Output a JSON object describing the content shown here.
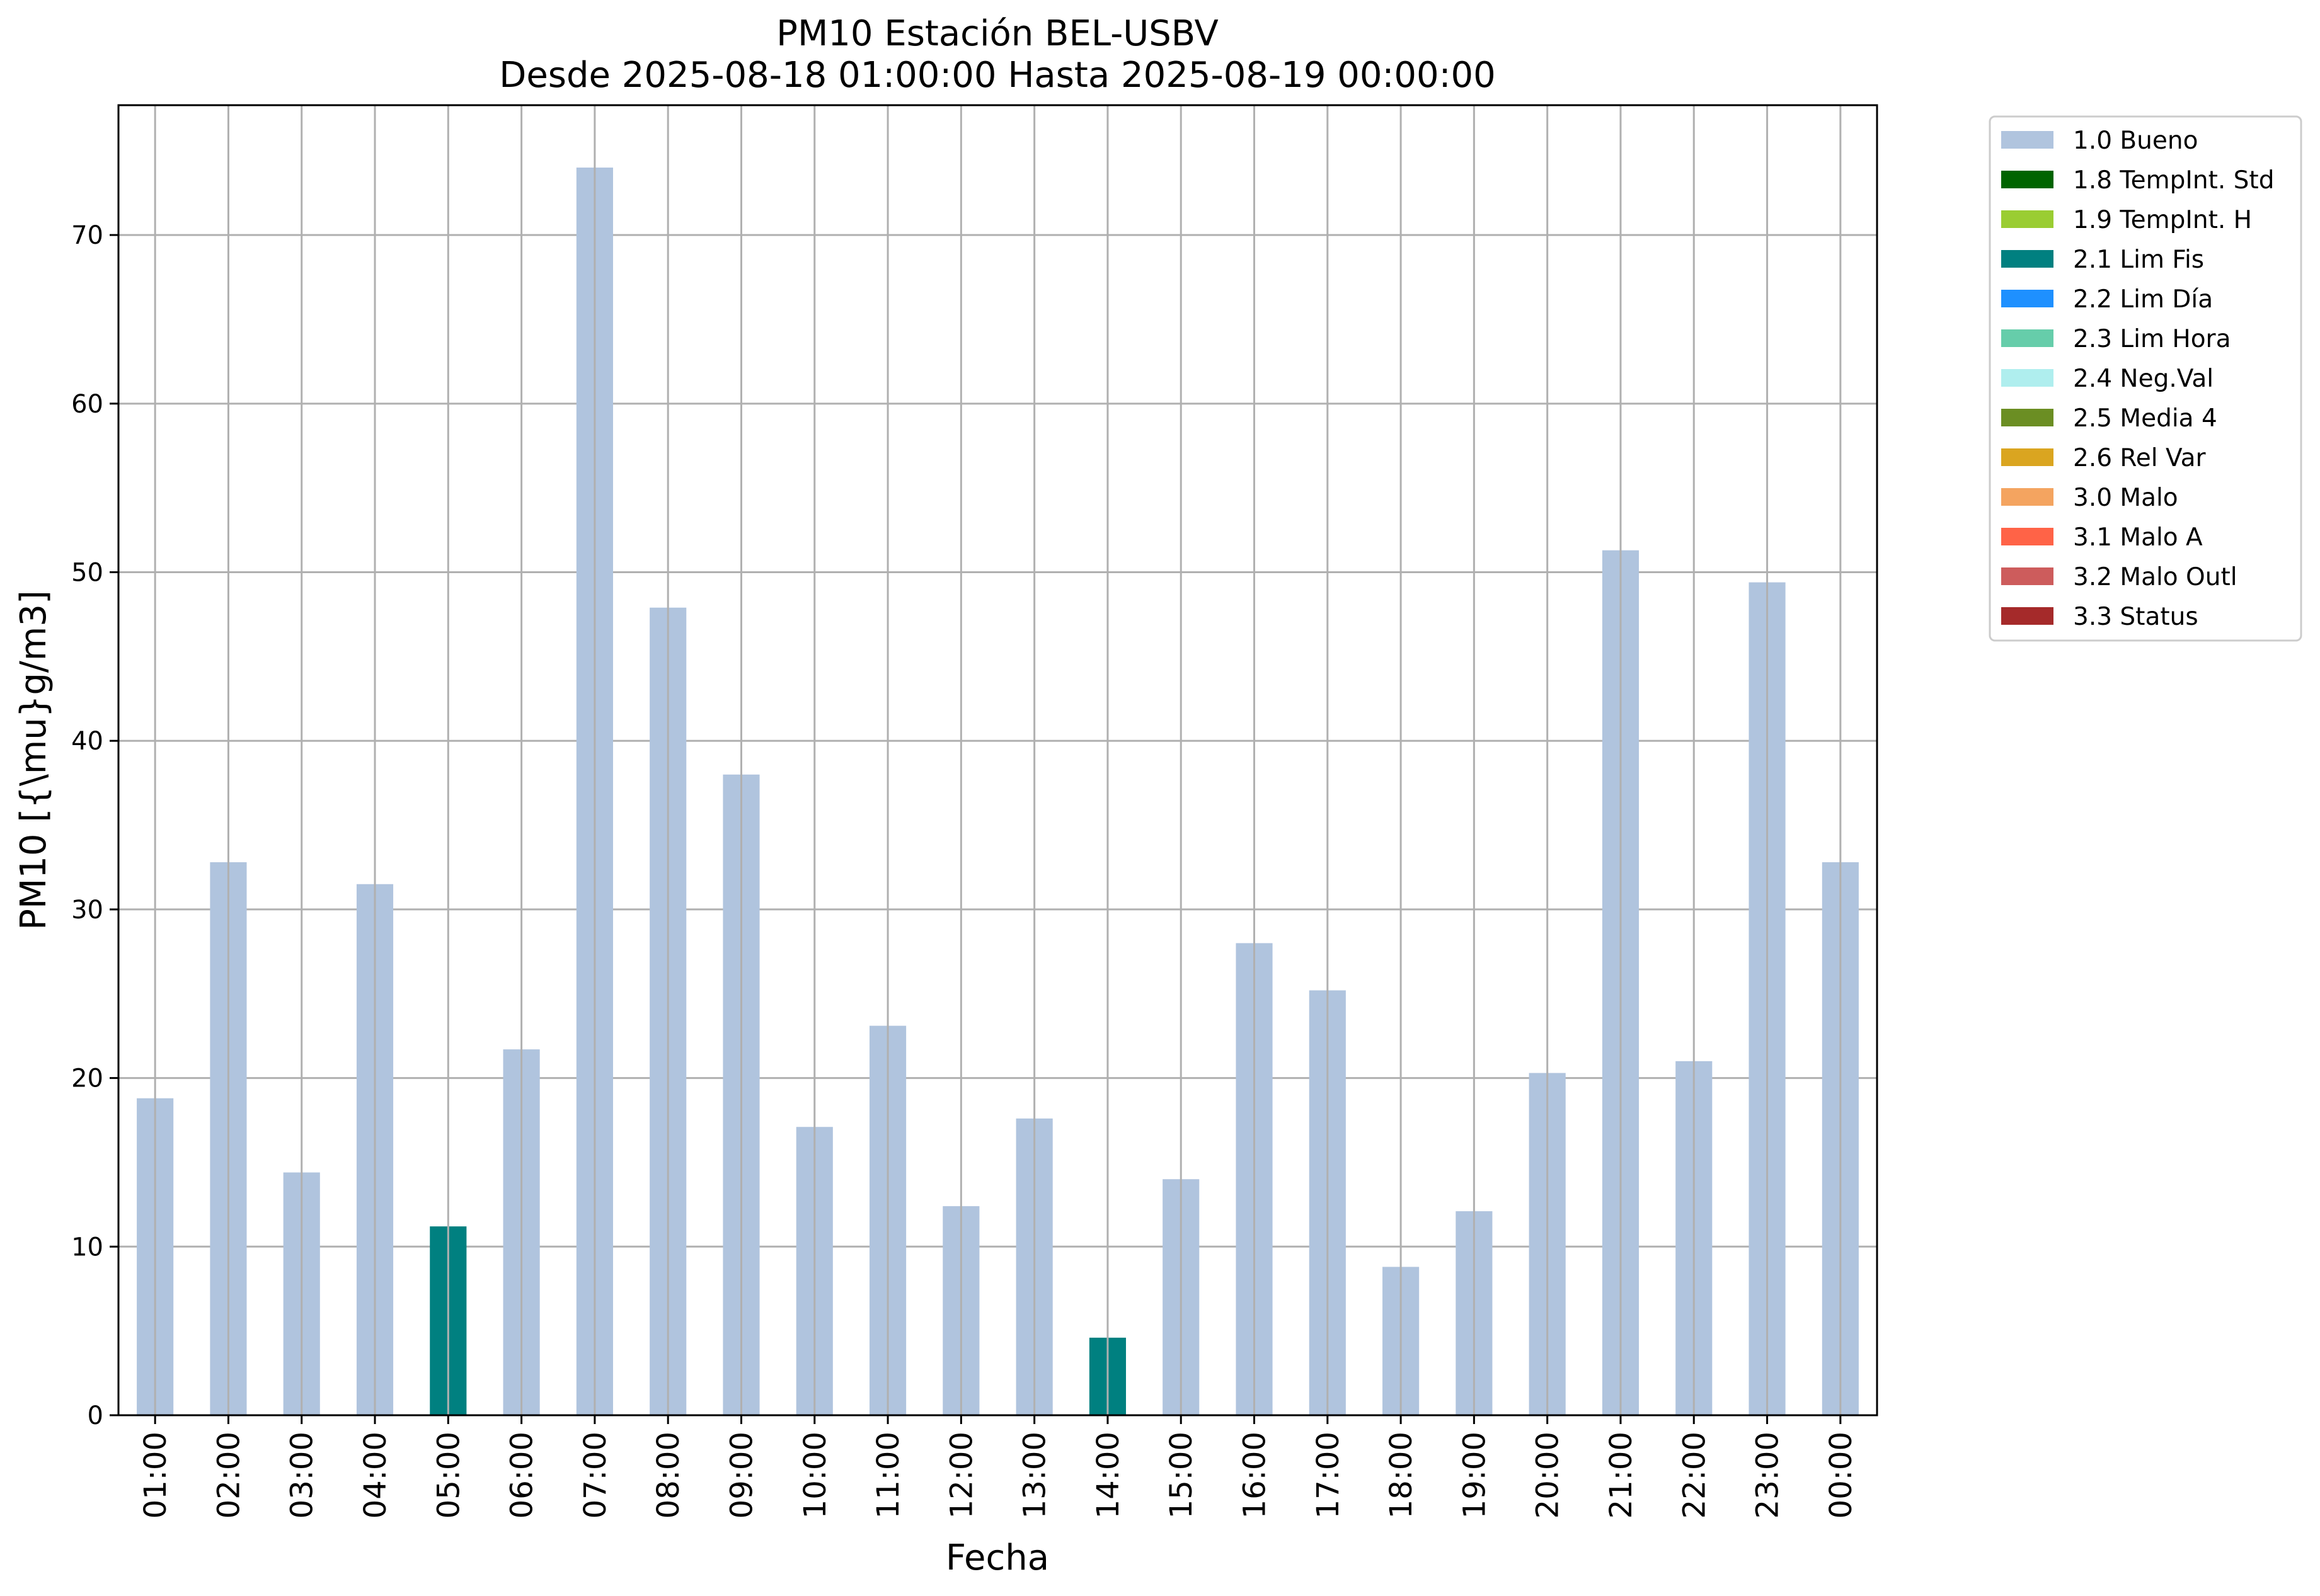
{
  "chart_data": {
    "type": "bar",
    "title": "PM10 Estación BEL-USBV",
    "subtitle": "Desde 2025-08-18 01:00:00 Hasta 2025-08-19 00:00:00",
    "xlabel": "Fecha",
    "ylabel": "PM10 [{\\mu}g/m3]",
    "ylim": [
      0,
      77.7
    ],
    "yticks": [
      0,
      10,
      20,
      30,
      40,
      50,
      60,
      70
    ],
    "grid": true,
    "legend_position": "outside-top-right",
    "categories": [
      "01:00",
      "02:00",
      "03:00",
      "04:00",
      "05:00",
      "06:00",
      "07:00",
      "08:00",
      "09:00",
      "10:00",
      "11:00",
      "12:00",
      "13:00",
      "14:00",
      "15:00",
      "16:00",
      "17:00",
      "18:00",
      "19:00",
      "20:00",
      "21:00",
      "22:00",
      "23:00",
      "00:00"
    ],
    "values": [
      18.8,
      32.8,
      14.4,
      31.5,
      11.2,
      21.7,
      74.0,
      47.9,
      38.0,
      17.1,
      23.1,
      12.4,
      17.6,
      4.6,
      14.0,
      28.0,
      25.2,
      8.8,
      12.1,
      20.3,
      51.3,
      21.0,
      49.4,
      32.8
    ],
    "flags": [
      "1.0 Bueno",
      "1.0 Bueno",
      "1.0 Bueno",
      "1.0 Bueno",
      "2.1 Lim Fis",
      "1.0 Bueno",
      "1.0 Bueno",
      "1.0 Bueno",
      "1.0 Bueno",
      "1.0 Bueno",
      "1.0 Bueno",
      "1.0 Bueno",
      "1.0 Bueno",
      "2.1 Lim Fis",
      "1.0 Bueno",
      "1.0 Bueno",
      "1.0 Bueno",
      "1.0 Bueno",
      "1.0 Bueno",
      "1.0 Bueno",
      "1.0 Bueno",
      "1.0 Bueno",
      "1.0 Bueno",
      "1.0 Bueno"
    ],
    "legend": [
      {
        "label": "1.0 Bueno",
        "color": "#b0c4de"
      },
      {
        "label": "1.8 TempInt. Std",
        "color": "#006400"
      },
      {
        "label": "1.9 TempInt. H",
        "color": "#9acd32"
      },
      {
        "label": "2.1 Lim Fis",
        "color": "#008080"
      },
      {
        "label": "2.2 Lim Día",
        "color": "#1e90ff"
      },
      {
        "label": "2.3 Lim Hora",
        "color": "#66cdaa"
      },
      {
        "label": "2.4 Neg.Val",
        "color": "#afeeee"
      },
      {
        "label": "2.5 Media 4",
        "color": "#6b8e23"
      },
      {
        "label": "2.6 Rel Var",
        "color": "#daa520"
      },
      {
        "label": "3.0 Malo",
        "color": "#f4a460"
      },
      {
        "label": "3.1 Malo A",
        "color": "#ff6347"
      },
      {
        "label": "3.2 Malo Outl",
        "color": "#cd5c5c"
      },
      {
        "label": "3.3 Status",
        "color": "#a52a2a"
      }
    ]
  }
}
